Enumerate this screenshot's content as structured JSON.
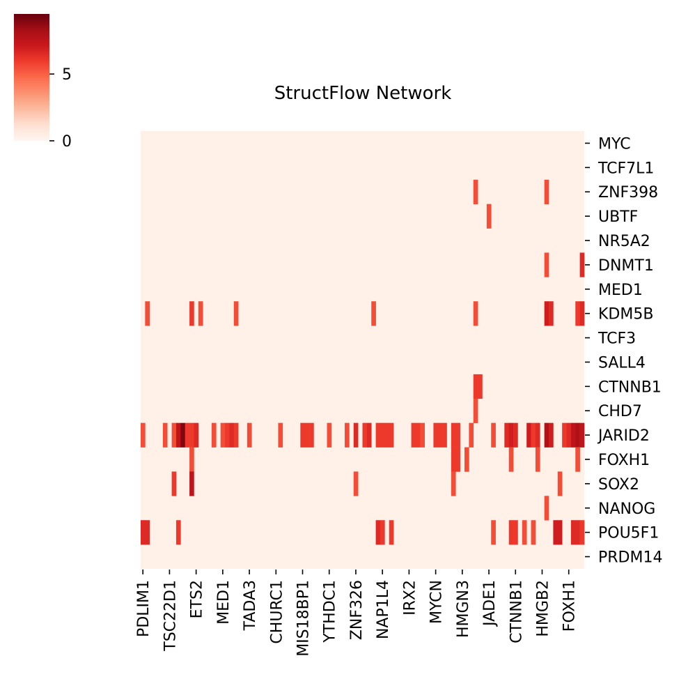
{
  "chart_data": {
    "type": "heatmap",
    "title": "StructFlow Network",
    "xlabel": "",
    "ylabel": "",
    "colormap": "Reds",
    "colorbar": {
      "ticks": [
        0,
        5
      ],
      "range": [
        0,
        9.5
      ],
      "placement": "top-left"
    },
    "x_tick_labels": [
      "PDLIM1",
      "TSC22D1",
      "ETS2",
      "MED1",
      "TADA3",
      "CHURC1",
      "MIS18BP1",
      "YTHDC1",
      "ZNF326",
      "NAP1L4",
      "IRX2",
      "MYCN",
      "HMGN3",
      "JADE1",
      "CTNNB1",
      "HMGB2",
      "FOXH1"
    ],
    "x_tick_columns": [
      0,
      6,
      12,
      18,
      24,
      30,
      36,
      42,
      48,
      54,
      60,
      66,
      72,
      78,
      84,
      90,
      96
    ],
    "n_columns": 100,
    "rows": [
      "MYC",
      "TCF7L1",
      "ZNF398",
      "UBTF",
      "NR5A2",
      "DNMT1",
      "MED1",
      "KDM5B",
      "TCF3",
      "SALL4",
      "CTNNB1",
      "CHD7",
      "JARID2",
      "FOXH1",
      "SOX2",
      "NANOG",
      "POU5F1",
      "PRDM14"
    ],
    "background_value": 0.3,
    "cells": [
      [
        2,
        75,
        5.5
      ],
      [
        2,
        91,
        5.5
      ],
      [
        3,
        78,
        5.5
      ],
      [
        5,
        91,
        5.5
      ],
      [
        5,
        99,
        6.5
      ],
      [
        7,
        1,
        5.5
      ],
      [
        7,
        11,
        6
      ],
      [
        7,
        13,
        5.5
      ],
      [
        7,
        21,
        5.5
      ],
      [
        7,
        52,
        5.5
      ],
      [
        7,
        75,
        5.5
      ],
      [
        7,
        91,
        7
      ],
      [
        7,
        92,
        6.5
      ],
      [
        7,
        98,
        6
      ],
      [
        7,
        99,
        6.5
      ],
      [
        10,
        75,
        6
      ],
      [
        10,
        76,
        6
      ],
      [
        11,
        75,
        5.5
      ],
      [
        12,
        0,
        5.5
      ],
      [
        12,
        5,
        5.5
      ],
      [
        12,
        7,
        5.5
      ],
      [
        12,
        8,
        7.5
      ],
      [
        12,
        9,
        9
      ],
      [
        12,
        10,
        6
      ],
      [
        12,
        11,
        6
      ],
      [
        12,
        12,
        6.5
      ],
      [
        12,
        16,
        5.5
      ],
      [
        12,
        18,
        5.5
      ],
      [
        12,
        19,
        6
      ],
      [
        12,
        20,
        6.5
      ],
      [
        12,
        21,
        6
      ],
      [
        12,
        24,
        5.5
      ],
      [
        12,
        31,
        5.5
      ],
      [
        12,
        36,
        6
      ],
      [
        12,
        37,
        6
      ],
      [
        12,
        38,
        6
      ],
      [
        12,
        42,
        5.5
      ],
      [
        12,
        46,
        5.5
      ],
      [
        12,
        48,
        6.5
      ],
      [
        12,
        50,
        6
      ],
      [
        12,
        51,
        6.5
      ],
      [
        12,
        53,
        6
      ],
      [
        12,
        54,
        6
      ],
      [
        12,
        55,
        6
      ],
      [
        12,
        56,
        6
      ],
      [
        12,
        61,
        6
      ],
      [
        12,
        62,
        6
      ],
      [
        12,
        63,
        5.5
      ],
      [
        12,
        66,
        6
      ],
      [
        12,
        67,
        6
      ],
      [
        12,
        68,
        6
      ],
      [
        12,
        70,
        6
      ],
      [
        12,
        71,
        6
      ],
      [
        12,
        74,
        5.5
      ],
      [
        12,
        79,
        5.5
      ],
      [
        12,
        82,
        6.5
      ],
      [
        12,
        83,
        7
      ],
      [
        12,
        84,
        6.5
      ],
      [
        12,
        87,
        7
      ],
      [
        12,
        88,
        6
      ],
      [
        12,
        89,
        6.5
      ],
      [
        12,
        91,
        8
      ],
      [
        12,
        92,
        7
      ],
      [
        12,
        95,
        6
      ],
      [
        12,
        96,
        6.5
      ],
      [
        12,
        97,
        7.5
      ],
      [
        12,
        98,
        8
      ],
      [
        12,
        99,
        7.5
      ],
      [
        13,
        11,
        5.5
      ],
      [
        13,
        70,
        6
      ],
      [
        13,
        71,
        6
      ],
      [
        13,
        73,
        5.5
      ],
      [
        13,
        83,
        5.5
      ],
      [
        13,
        89,
        5.5
      ],
      [
        13,
        98,
        5.5
      ],
      [
        14,
        7,
        6
      ],
      [
        14,
        11,
        7.5
      ],
      [
        14,
        48,
        5.5
      ],
      [
        14,
        70,
        5.5
      ],
      [
        14,
        94,
        5.5
      ],
      [
        15,
        91,
        5.5
      ],
      [
        16,
        0,
        6.5
      ],
      [
        16,
        1,
        6.5
      ],
      [
        16,
        8,
        6
      ],
      [
        16,
        53,
        6.5
      ],
      [
        16,
        54,
        6
      ],
      [
        16,
        56,
        6
      ],
      [
        16,
        79,
        5.5
      ],
      [
        16,
        83,
        6
      ],
      [
        16,
        84,
        6
      ],
      [
        16,
        86,
        5.5
      ],
      [
        16,
        88,
        5.5
      ],
      [
        16,
        93,
        7
      ],
      [
        16,
        94,
        7
      ],
      [
        16,
        97,
        6.5
      ],
      [
        16,
        98,
        6.5
      ],
      [
        16,
        99,
        6
      ]
    ]
  }
}
